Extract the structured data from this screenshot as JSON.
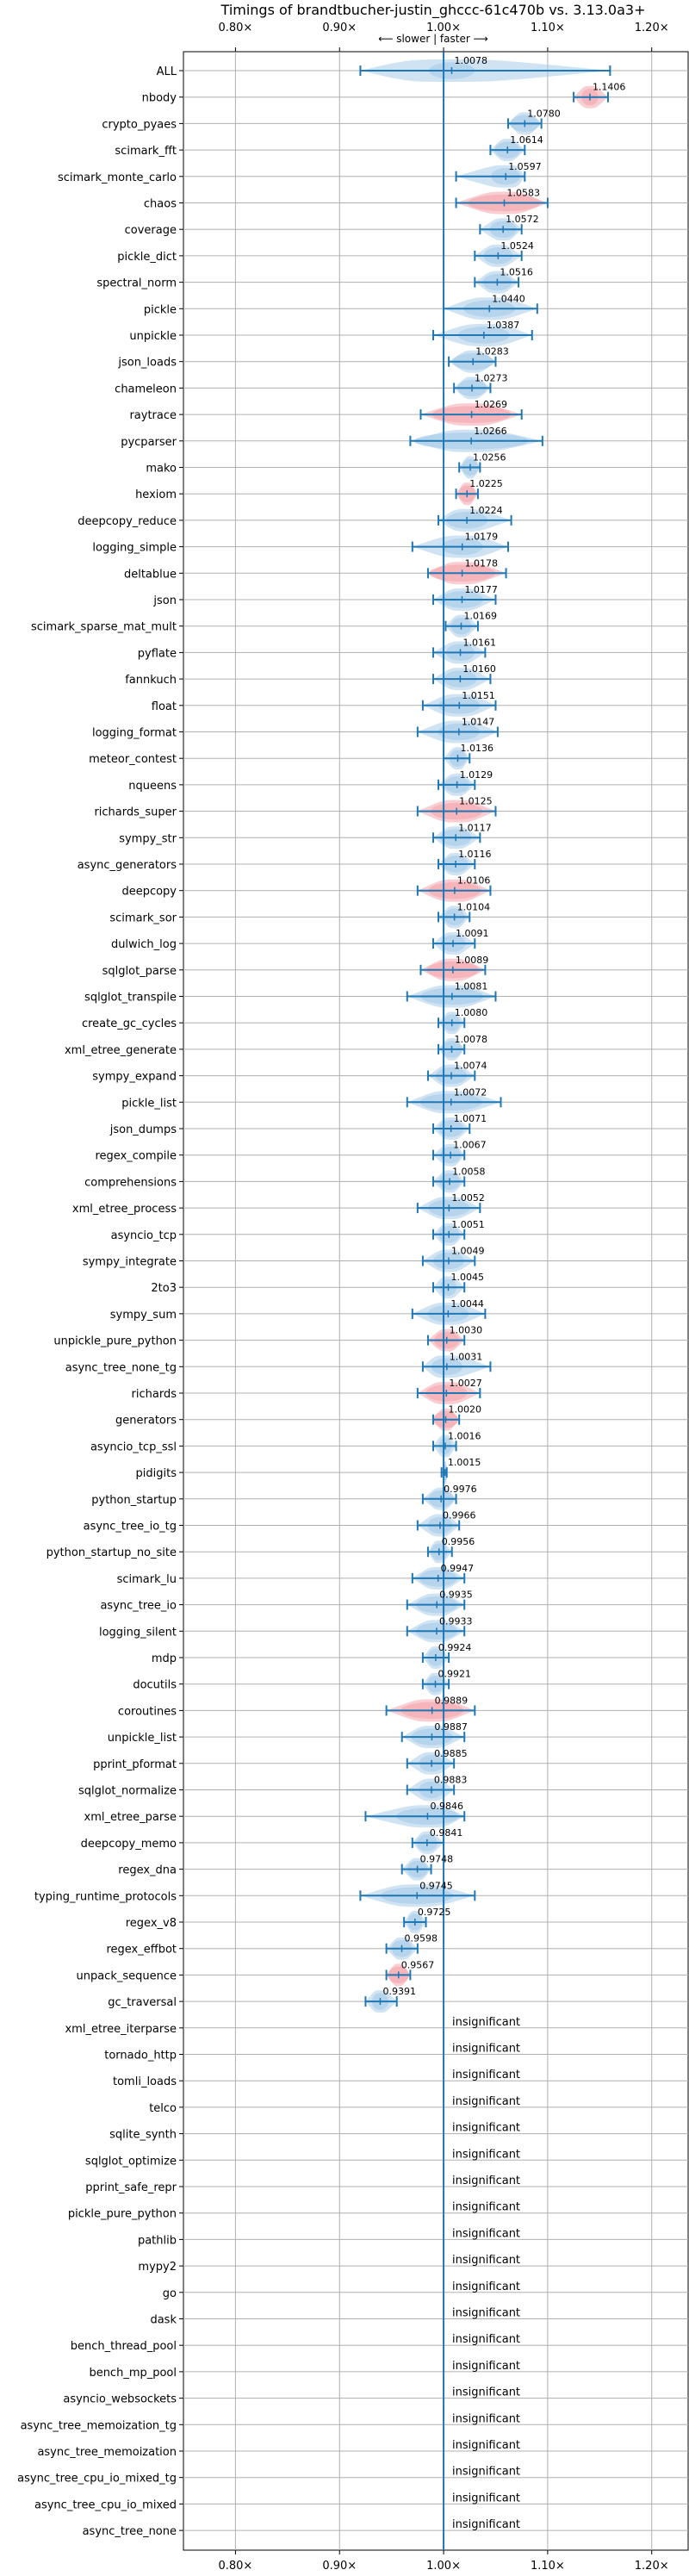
{
  "chart_data": {
    "type": "violin",
    "title": "Timings of brandtbucher-justin_ghccc-61c470b vs. 3.13.0a3+",
    "direction_label": "⟵ slower | faster ⟶",
    "xlim": [
      0.75,
      1.235
    ],
    "x_ticks": [
      0.8,
      0.9,
      1.0,
      1.1,
      1.2
    ],
    "x_tick_labels": [
      "0.80×",
      "0.90×",
      "1.00×",
      "1.10×",
      "1.20×"
    ],
    "reference_value": 1.0,
    "grid": true,
    "colors": {
      "normal": "#a9cce9",
      "highlight": "#f4a6ae",
      "line": "#1f77b4"
    },
    "benchmarks": [
      {
        "name": "ALL",
        "mean": 1.0078,
        "lo": 0.92,
        "hi": 1.16,
        "width": 0.022,
        "label": "1.0078",
        "highlight": false
      },
      {
        "name": "nbody",
        "mean": 1.1406,
        "lo": 1.125,
        "hi": 1.158,
        "width": 0.008,
        "label": "1.1406",
        "highlight": true
      },
      {
        "name": "crypto_pyaes",
        "mean": 1.078,
        "lo": 1.062,
        "hi": 1.094,
        "width": 0.014,
        "label": "1.0780",
        "highlight": false
      },
      {
        "name": "scimark_fft",
        "mean": 1.0614,
        "lo": 1.045,
        "hi": 1.078,
        "width": 0.012,
        "label": "1.0614",
        "highlight": false
      },
      {
        "name": "scimark_monte_carlo",
        "mean": 1.0597,
        "lo": 1.012,
        "hi": 1.078,
        "width": 0.014,
        "label": "1.0597",
        "highlight": false
      },
      {
        "name": "chaos",
        "mean": 1.0583,
        "lo": 1.012,
        "hi": 1.1,
        "width": 0.035,
        "label": "1.0583",
        "highlight": true
      },
      {
        "name": "coverage",
        "mean": 1.0572,
        "lo": 1.035,
        "hi": 1.075,
        "width": 0.013,
        "label": "1.0572",
        "highlight": false
      },
      {
        "name": "pickle_dict",
        "mean": 1.0524,
        "lo": 1.03,
        "hi": 1.075,
        "width": 0.014,
        "label": "1.0524",
        "highlight": false
      },
      {
        "name": "spectral_norm",
        "mean": 1.0516,
        "lo": 1.03,
        "hi": 1.072,
        "width": 0.014,
        "label": "1.0516",
        "highlight": false
      },
      {
        "name": "pickle",
        "mean": 1.044,
        "lo": 1.0,
        "hi": 1.09,
        "width": 0.025,
        "label": "1.0440",
        "highlight": false
      },
      {
        "name": "unpickle",
        "mean": 1.0387,
        "lo": 0.99,
        "hi": 1.085,
        "width": 0.025,
        "label": "1.0387",
        "highlight": false
      },
      {
        "name": "json_loads",
        "mean": 1.0283,
        "lo": 1.005,
        "hi": 1.05,
        "width": 0.02,
        "label": "1.0283",
        "highlight": false
      },
      {
        "name": "chameleon",
        "mean": 1.0273,
        "lo": 1.01,
        "hi": 1.045,
        "width": 0.014,
        "label": "1.0273",
        "highlight": false
      },
      {
        "name": "raytrace",
        "mean": 1.0269,
        "lo": 0.978,
        "hi": 1.075,
        "width": 0.038,
        "label": "1.0269",
        "highlight": true
      },
      {
        "name": "pycparser",
        "mean": 1.0266,
        "lo": 0.968,
        "hi": 1.095,
        "width": 0.055,
        "label": "1.0266",
        "highlight": false
      },
      {
        "name": "mako",
        "mean": 1.0256,
        "lo": 1.015,
        "hi": 1.035,
        "width": 0.008,
        "label": "1.0256",
        "highlight": false
      },
      {
        "name": "hexiom",
        "mean": 1.0225,
        "lo": 1.012,
        "hi": 1.033,
        "width": 0.008,
        "label": "1.0225",
        "highlight": true
      },
      {
        "name": "deepcopy_reduce",
        "mean": 1.0224,
        "lo": 0.995,
        "hi": 1.065,
        "width": 0.02,
        "label": "1.0224",
        "highlight": false
      },
      {
        "name": "logging_simple",
        "mean": 1.0179,
        "lo": 0.97,
        "hi": 1.062,
        "width": 0.02,
        "label": "1.0179",
        "highlight": false
      },
      {
        "name": "deltablue",
        "mean": 1.0178,
        "lo": 0.985,
        "hi": 1.06,
        "width": 0.032,
        "label": "1.0178",
        "highlight": true
      },
      {
        "name": "json",
        "mean": 1.0177,
        "lo": 0.99,
        "hi": 1.05,
        "width": 0.02,
        "label": "1.0177",
        "highlight": false
      },
      {
        "name": "scimark_sparse_mat_mult",
        "mean": 1.0169,
        "lo": 1.002,
        "hi": 1.033,
        "width": 0.01,
        "label": "1.0169",
        "highlight": false
      },
      {
        "name": "pyflate",
        "mean": 1.0161,
        "lo": 0.99,
        "hi": 1.04,
        "width": 0.014,
        "label": "1.0161",
        "highlight": false
      },
      {
        "name": "fannkuch",
        "mean": 1.016,
        "lo": 0.99,
        "hi": 1.045,
        "width": 0.016,
        "label": "1.0160",
        "highlight": false
      },
      {
        "name": "float",
        "mean": 1.0151,
        "lo": 0.98,
        "hi": 1.05,
        "width": 0.02,
        "label": "1.0151",
        "highlight": false
      },
      {
        "name": "logging_format",
        "mean": 1.0147,
        "lo": 0.975,
        "hi": 1.052,
        "width": 0.02,
        "label": "1.0147",
        "highlight": false
      },
      {
        "name": "meteor_contest",
        "mean": 1.0136,
        "lo": 1.0,
        "hi": 1.025,
        "width": 0.008,
        "label": "1.0136",
        "highlight": false
      },
      {
        "name": "nqueens",
        "mean": 1.0129,
        "lo": 0.995,
        "hi": 1.03,
        "width": 0.012,
        "label": "1.0129",
        "highlight": false
      },
      {
        "name": "richards_super",
        "mean": 1.0125,
        "lo": 0.975,
        "hi": 1.05,
        "width": 0.025,
        "label": "1.0125",
        "highlight": true
      },
      {
        "name": "sympy_str",
        "mean": 1.0117,
        "lo": 0.99,
        "hi": 1.035,
        "width": 0.015,
        "label": "1.0117",
        "highlight": false
      },
      {
        "name": "async_generators",
        "mean": 1.0116,
        "lo": 0.995,
        "hi": 1.03,
        "width": 0.012,
        "label": "1.0116",
        "highlight": false
      },
      {
        "name": "deepcopy",
        "mean": 1.0106,
        "lo": 0.975,
        "hi": 1.045,
        "width": 0.025,
        "label": "1.0106",
        "highlight": true
      },
      {
        "name": "scimark_sor",
        "mean": 1.0104,
        "lo": 0.995,
        "hi": 1.025,
        "width": 0.01,
        "label": "1.0104",
        "highlight": false
      },
      {
        "name": "dulwich_log",
        "mean": 1.0091,
        "lo": 0.99,
        "hi": 1.03,
        "width": 0.012,
        "label": "1.0091",
        "highlight": false
      },
      {
        "name": "sqlglot_parse",
        "mean": 1.0089,
        "lo": 0.978,
        "hi": 1.04,
        "width": 0.025,
        "label": "1.0089",
        "highlight": true
      },
      {
        "name": "sqlglot_transpile",
        "mean": 1.0081,
        "lo": 0.965,
        "hi": 1.05,
        "width": 0.03,
        "label": "1.0081",
        "highlight": false
      },
      {
        "name": "create_gc_cycles",
        "mean": 1.008,
        "lo": 0.995,
        "hi": 1.02,
        "width": 0.008,
        "label": "1.0080",
        "highlight": false
      },
      {
        "name": "xml_etree_generate",
        "mean": 1.0078,
        "lo": 0.995,
        "hi": 1.02,
        "width": 0.01,
        "label": "1.0078",
        "highlight": false
      },
      {
        "name": "sympy_expand",
        "mean": 1.0074,
        "lo": 0.985,
        "hi": 1.03,
        "width": 0.015,
        "label": "1.0074",
        "highlight": false
      },
      {
        "name": "pickle_list",
        "mean": 1.0072,
        "lo": 0.965,
        "hi": 1.055,
        "width": 0.03,
        "label": "1.0072",
        "highlight": false
      },
      {
        "name": "json_dumps",
        "mean": 1.0071,
        "lo": 0.99,
        "hi": 1.025,
        "width": 0.012,
        "label": "1.0071",
        "highlight": false
      },
      {
        "name": "regex_compile",
        "mean": 1.0067,
        "lo": 0.99,
        "hi": 1.02,
        "width": 0.01,
        "label": "1.0067",
        "highlight": false
      },
      {
        "name": "comprehensions",
        "mean": 1.0058,
        "lo": 0.99,
        "hi": 1.02,
        "width": 0.01,
        "label": "1.0058",
        "highlight": false
      },
      {
        "name": "xml_etree_process",
        "mean": 1.0052,
        "lo": 0.975,
        "hi": 1.035,
        "width": 0.02,
        "label": "1.0052",
        "highlight": false
      },
      {
        "name": "asyncio_tcp",
        "mean": 1.0051,
        "lo": 0.99,
        "hi": 1.02,
        "width": 0.01,
        "label": "1.0051",
        "highlight": false
      },
      {
        "name": "sympy_integrate",
        "mean": 1.0049,
        "lo": 0.98,
        "hi": 1.03,
        "width": 0.015,
        "label": "1.0049",
        "highlight": false
      },
      {
        "name": "2to3",
        "mean": 1.0045,
        "lo": 0.99,
        "hi": 1.02,
        "width": 0.008,
        "label": "1.0045",
        "highlight": false
      },
      {
        "name": "sympy_sum",
        "mean": 1.0044,
        "lo": 0.97,
        "hi": 1.04,
        "width": 0.02,
        "label": "1.0044",
        "highlight": false
      },
      {
        "name": "unpickle_pure_python",
        "mean": 1.003,
        "lo": 0.985,
        "hi": 1.02,
        "width": 0.012,
        "label": "1.0030",
        "highlight": true
      },
      {
        "name": "async_tree_none_tg",
        "mean": 1.0031,
        "lo": 0.98,
        "hi": 1.045,
        "width": 0.015,
        "label": "1.0031",
        "highlight": false
      },
      {
        "name": "richards",
        "mean": 1.0027,
        "lo": 0.975,
        "hi": 1.035,
        "width": 0.02,
        "label": "1.0027",
        "highlight": true
      },
      {
        "name": "generators",
        "mean": 1.002,
        "lo": 0.99,
        "hi": 1.015,
        "width": 0.012,
        "label": "1.0020",
        "highlight": true
      },
      {
        "name": "asyncio_tcp_ssl",
        "mean": 1.0016,
        "lo": 0.99,
        "hi": 1.012,
        "width": 0.006,
        "label": "1.0016",
        "highlight": false
      },
      {
        "name": "pidigits",
        "mean": 1.0015,
        "lo": 0.998,
        "hi": 1.003,
        "width": 0.004,
        "label": "1.0015",
        "highlight": false
      },
      {
        "name": "python_startup",
        "mean": 0.9976,
        "lo": 0.98,
        "hi": 1.012,
        "width": 0.012,
        "label": "0.9976",
        "highlight": false
      },
      {
        "name": "async_tree_io_tg",
        "mean": 0.9966,
        "lo": 0.975,
        "hi": 1.015,
        "width": 0.012,
        "label": "0.9966",
        "highlight": false
      },
      {
        "name": "python_startup_no_site",
        "mean": 0.9956,
        "lo": 0.985,
        "hi": 1.008,
        "width": 0.008,
        "label": "0.9956",
        "highlight": false
      },
      {
        "name": "scimark_lu",
        "mean": 0.9947,
        "lo": 0.97,
        "hi": 1.02,
        "width": 0.018,
        "label": "0.9947",
        "highlight": false
      },
      {
        "name": "async_tree_io",
        "mean": 0.9935,
        "lo": 0.965,
        "hi": 1.02,
        "width": 0.02,
        "label": "0.9935",
        "highlight": false
      },
      {
        "name": "logging_silent",
        "mean": 0.9933,
        "lo": 0.965,
        "hi": 1.02,
        "width": 0.02,
        "label": "0.9933",
        "highlight": false
      },
      {
        "name": "mdp",
        "mean": 0.9924,
        "lo": 0.98,
        "hi": 1.005,
        "width": 0.008,
        "label": "0.9924",
        "highlight": false
      },
      {
        "name": "docutils",
        "mean": 0.9921,
        "lo": 0.98,
        "hi": 1.005,
        "width": 0.008,
        "label": "0.9921",
        "highlight": false
      },
      {
        "name": "coroutines",
        "mean": 0.9889,
        "lo": 0.945,
        "hi": 1.03,
        "width": 0.03,
        "label": "0.9889",
        "highlight": true
      },
      {
        "name": "unpickle_list",
        "mean": 0.9887,
        "lo": 0.96,
        "hi": 1.02,
        "width": 0.02,
        "label": "0.9887",
        "highlight": false
      },
      {
        "name": "pprint_pformat",
        "mean": 0.9885,
        "lo": 0.965,
        "hi": 1.01,
        "width": 0.012,
        "label": "0.9885",
        "highlight": false
      },
      {
        "name": "sqlglot_normalize",
        "mean": 0.9883,
        "lo": 0.965,
        "hi": 1.01,
        "width": 0.012,
        "label": "0.9883",
        "highlight": false
      },
      {
        "name": "xml_etree_parse",
        "mean": 0.9846,
        "lo": 0.925,
        "hi": 1.02,
        "width": 0.03,
        "label": "0.9846",
        "highlight": false
      },
      {
        "name": "deepcopy_memo",
        "mean": 0.9841,
        "lo": 0.97,
        "hi": 1.0,
        "width": 0.01,
        "label": "0.9841",
        "highlight": false
      },
      {
        "name": "regex_dna",
        "mean": 0.9748,
        "lo": 0.96,
        "hi": 0.988,
        "width": 0.01,
        "label": "0.9748",
        "highlight": false
      },
      {
        "name": "typing_runtime_protocols",
        "mean": 0.9745,
        "lo": 0.92,
        "hi": 1.03,
        "width": 0.035,
        "label": "0.9745",
        "highlight": false
      },
      {
        "name": "regex_v8",
        "mean": 0.9725,
        "lo": 0.962,
        "hi": 0.983,
        "width": 0.007,
        "label": "0.9725",
        "highlight": false
      },
      {
        "name": "regex_effbot",
        "mean": 0.9598,
        "lo": 0.945,
        "hi": 0.975,
        "width": 0.01,
        "label": "0.9598",
        "highlight": false
      },
      {
        "name": "unpack_sequence",
        "mean": 0.9567,
        "lo": 0.945,
        "hi": 0.968,
        "width": 0.01,
        "label": "0.9567",
        "highlight": true
      },
      {
        "name": "gc_traversal",
        "mean": 0.9391,
        "lo": 0.925,
        "hi": 0.955,
        "width": 0.008,
        "label": "0.9391",
        "highlight": false
      },
      {
        "name": "xml_etree_iterparse",
        "label": "insignificant"
      },
      {
        "name": "tornado_http",
        "label": "insignificant"
      },
      {
        "name": "tomli_loads",
        "label": "insignificant"
      },
      {
        "name": "telco",
        "label": "insignificant"
      },
      {
        "name": "sqlite_synth",
        "label": "insignificant"
      },
      {
        "name": "sqlglot_optimize",
        "label": "insignificant"
      },
      {
        "name": "pprint_safe_repr",
        "label": "insignificant"
      },
      {
        "name": "pickle_pure_python",
        "label": "insignificant"
      },
      {
        "name": "pathlib",
        "label": "insignificant"
      },
      {
        "name": "mypy2",
        "label": "insignificant"
      },
      {
        "name": "go",
        "label": "insignificant"
      },
      {
        "name": "dask",
        "label": "insignificant"
      },
      {
        "name": "bench_thread_pool",
        "label": "insignificant"
      },
      {
        "name": "bench_mp_pool",
        "label": "insignificant"
      },
      {
        "name": "asyncio_websockets",
        "label": "insignificant"
      },
      {
        "name": "async_tree_memoization_tg",
        "label": "insignificant"
      },
      {
        "name": "async_tree_memoization",
        "label": "insignificant"
      },
      {
        "name": "async_tree_cpu_io_mixed_tg",
        "label": "insignificant"
      },
      {
        "name": "async_tree_cpu_io_mixed",
        "label": "insignificant"
      },
      {
        "name": "async_tree_none",
        "label": "insignificant"
      }
    ]
  }
}
